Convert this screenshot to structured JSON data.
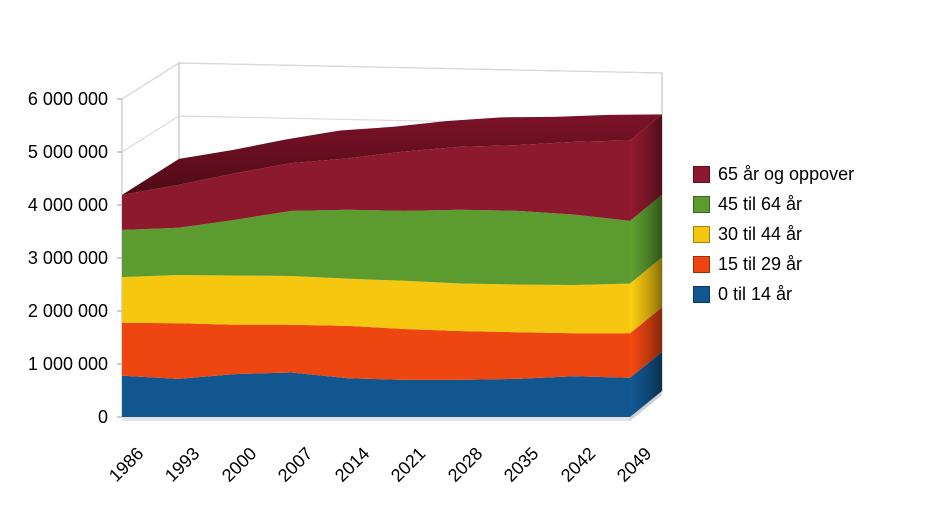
{
  "chart_data": {
    "type": "area",
    "variant": "3d-stacked-area",
    "title": "",
    "xlabel": "",
    "ylabel": "",
    "x": [
      1986,
      1993,
      2000,
      2007,
      2014,
      2021,
      2028,
      2035,
      2042,
      2049
    ],
    "x_tick_labels": [
      "1986",
      "1993",
      "2000",
      "2007",
      "2014",
      "2021",
      "2028",
      "2035",
      "2042",
      "2049"
    ],
    "y_tick_labels": [
      "0",
      "1 000 000",
      "2 000 000",
      "3 000 000",
      "4 000 000",
      "5 000 000",
      "6 000 000"
    ],
    "ylim": [
      0,
      6000000
    ],
    "grid": true,
    "legend_position": "right",
    "series": [
      {
        "name": "0 til 14 år",
        "color": "#11568E",
        "values": [
          780000,
          720000,
          810000,
          840000,
          730000,
          700000,
          700000,
          720000,
          770000,
          740000
        ]
      },
      {
        "name": "15 til 29 år",
        "color": "#EE4611",
        "values": [
          1000000,
          1050000,
          930000,
          900000,
          990000,
          960000,
          920000,
          880000,
          810000,
          840000
        ]
      },
      {
        "name": "30 til 44 år",
        "color": "#F6C710",
        "values": [
          860000,
          910000,
          930000,
          920000,
          890000,
          910000,
          900000,
          900000,
          910000,
          940000
        ]
      },
      {
        "name": "45 til 64 år",
        "color": "#5B9B2F",
        "values": [
          890000,
          890000,
          1050000,
          1230000,
          1300000,
          1320000,
          1390000,
          1390000,
          1330000,
          1180000
        ]
      },
      {
        "name": "65 år og oppover",
        "color": "#8D192F",
        "values": [
          660000,
          810000,
          880000,
          900000,
          970000,
          1120000,
          1190000,
          1240000,
          1370000,
          1520000
        ]
      }
    ],
    "legend": {
      "items": [
        {
          "label": "65 år og oppover",
          "color": "#8D192F"
        },
        {
          "label": "45 til 64 år",
          "color": "#5B9B2F"
        },
        {
          "label": "30 til 44 år",
          "color": "#F6C710"
        },
        {
          "label": "15 til 29 år",
          "color": "#EE4611"
        },
        {
          "label": "0 til 14 år",
          "color": "#11568E"
        }
      ]
    },
    "colors": {
      "background": "#ffffff",
      "wall_stroke": "#c6c6c6",
      "gridline": "#d9d9d9",
      "floor_front": "#e3e3e3",
      "floor_side": "#cfcfcf",
      "roof_top": "#7C1228",
      "roof_bottom": "#4E0A16"
    }
  }
}
